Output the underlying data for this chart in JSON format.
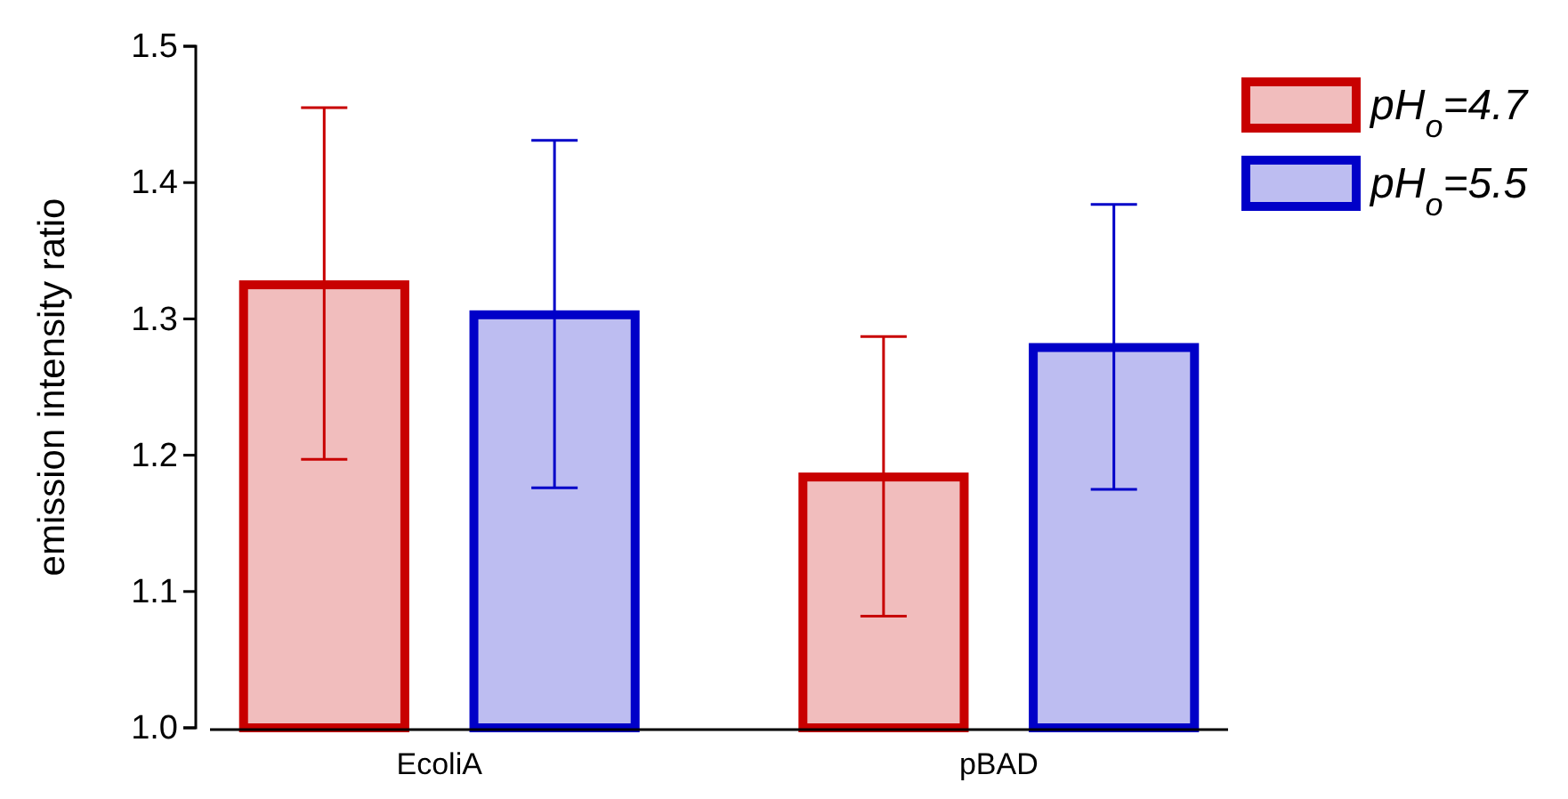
{
  "chart_data": {
    "type": "bar",
    "ylabel": "emission intensity ratio",
    "categories": [
      "EcoliA",
      "pBAD"
    ],
    "series": [
      {
        "name": "pH$_{o}$=4.7",
        "color": "#c80000",
        "values": [
          1.325,
          1.184
        ],
        "errors": [
          [
            1.197,
            1.455
          ],
          [
            1.082,
            1.287
          ]
        ]
      },
      {
        "name": "pH$_{o}$=5.5",
        "color": "#0000c8",
        "values": [
          1.303,
          1.279
        ],
        "errors": [
          [
            1.176,
            1.431
          ],
          [
            1.175,
            1.384
          ]
        ]
      }
    ],
    "ylim": [
      1.0,
      1.5
    ],
    "yticks": [
      {
        "value": 1.0,
        "label": "1.0"
      },
      1.1,
      1.2,
      1.3,
      1.4,
      {
        "value": 1.5,
        "label": "1.5"
      }
    ],
    "grid": false,
    "legend": "top right"
  }
}
